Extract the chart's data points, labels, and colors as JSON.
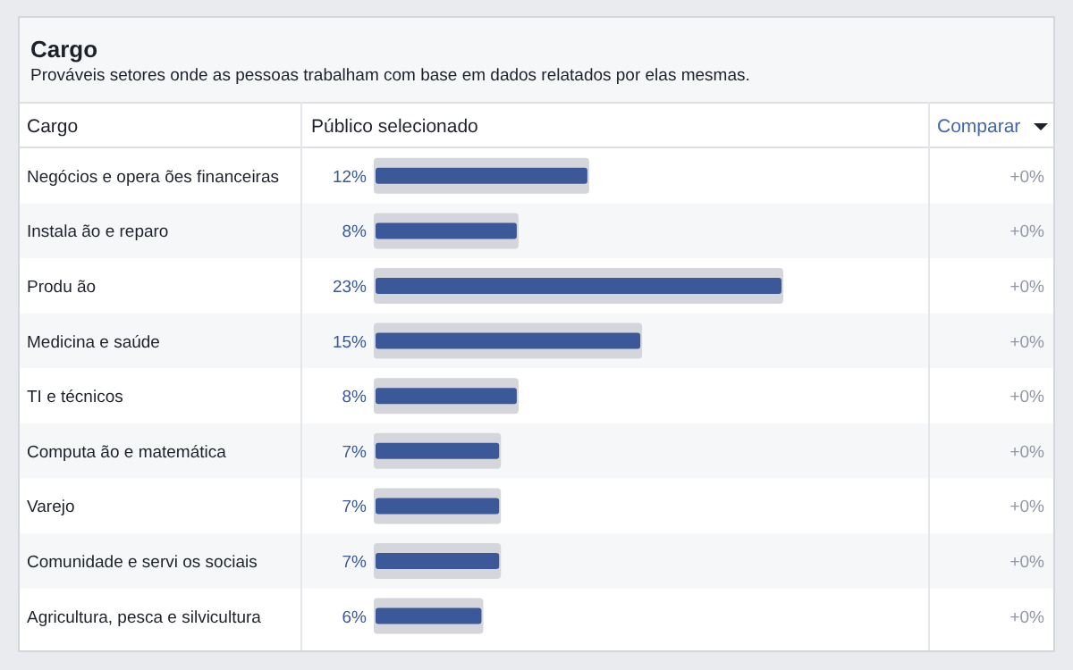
{
  "chart_data": {
    "type": "bar",
    "orientation": "horizontal",
    "title": "Cargo",
    "subtitle": "Prováveis setores onde as pessoas trabalham com base em dados relatados por elas mesmas.",
    "ylabel": "Cargo",
    "xlabel": "Público selecionado",
    "annotations": [
      "Comparar",
      "+0%",
      "+0%",
      "+0%",
      "+0%",
      "+0%",
      "+0%",
      "+0%",
      "+0%",
      "+0%"
    ],
    "categories": [
      "Negócios e opera  ões financeiras",
      "Instala  ão e reparo",
      "Produ  ão",
      "Medicina e saúde",
      "TI e técnicos",
      "Computa  ão e matemática",
      "Varejo",
      "Comunidade e servi  os sociais",
      "Agricultura, pesca e silvicultura"
    ],
    "series": [
      {
        "color": "#d4d6db",
        "values": [
          12,
          8,
          23,
          15,
          8,
          7,
          7,
          7,
          6
        ]
      },
      {
        "color": "#3b5998",
        "values": [
          12,
          8,
          23,
          15,
          8,
          7,
          7,
          7,
          6
        ],
        "value_labels": [
          "12%",
          "8%",
          "23%",
          "15%",
          "8%",
          "7%",
          "7%",
          "7%",
          "6%"
        ]
      }
    ]
  }
}
